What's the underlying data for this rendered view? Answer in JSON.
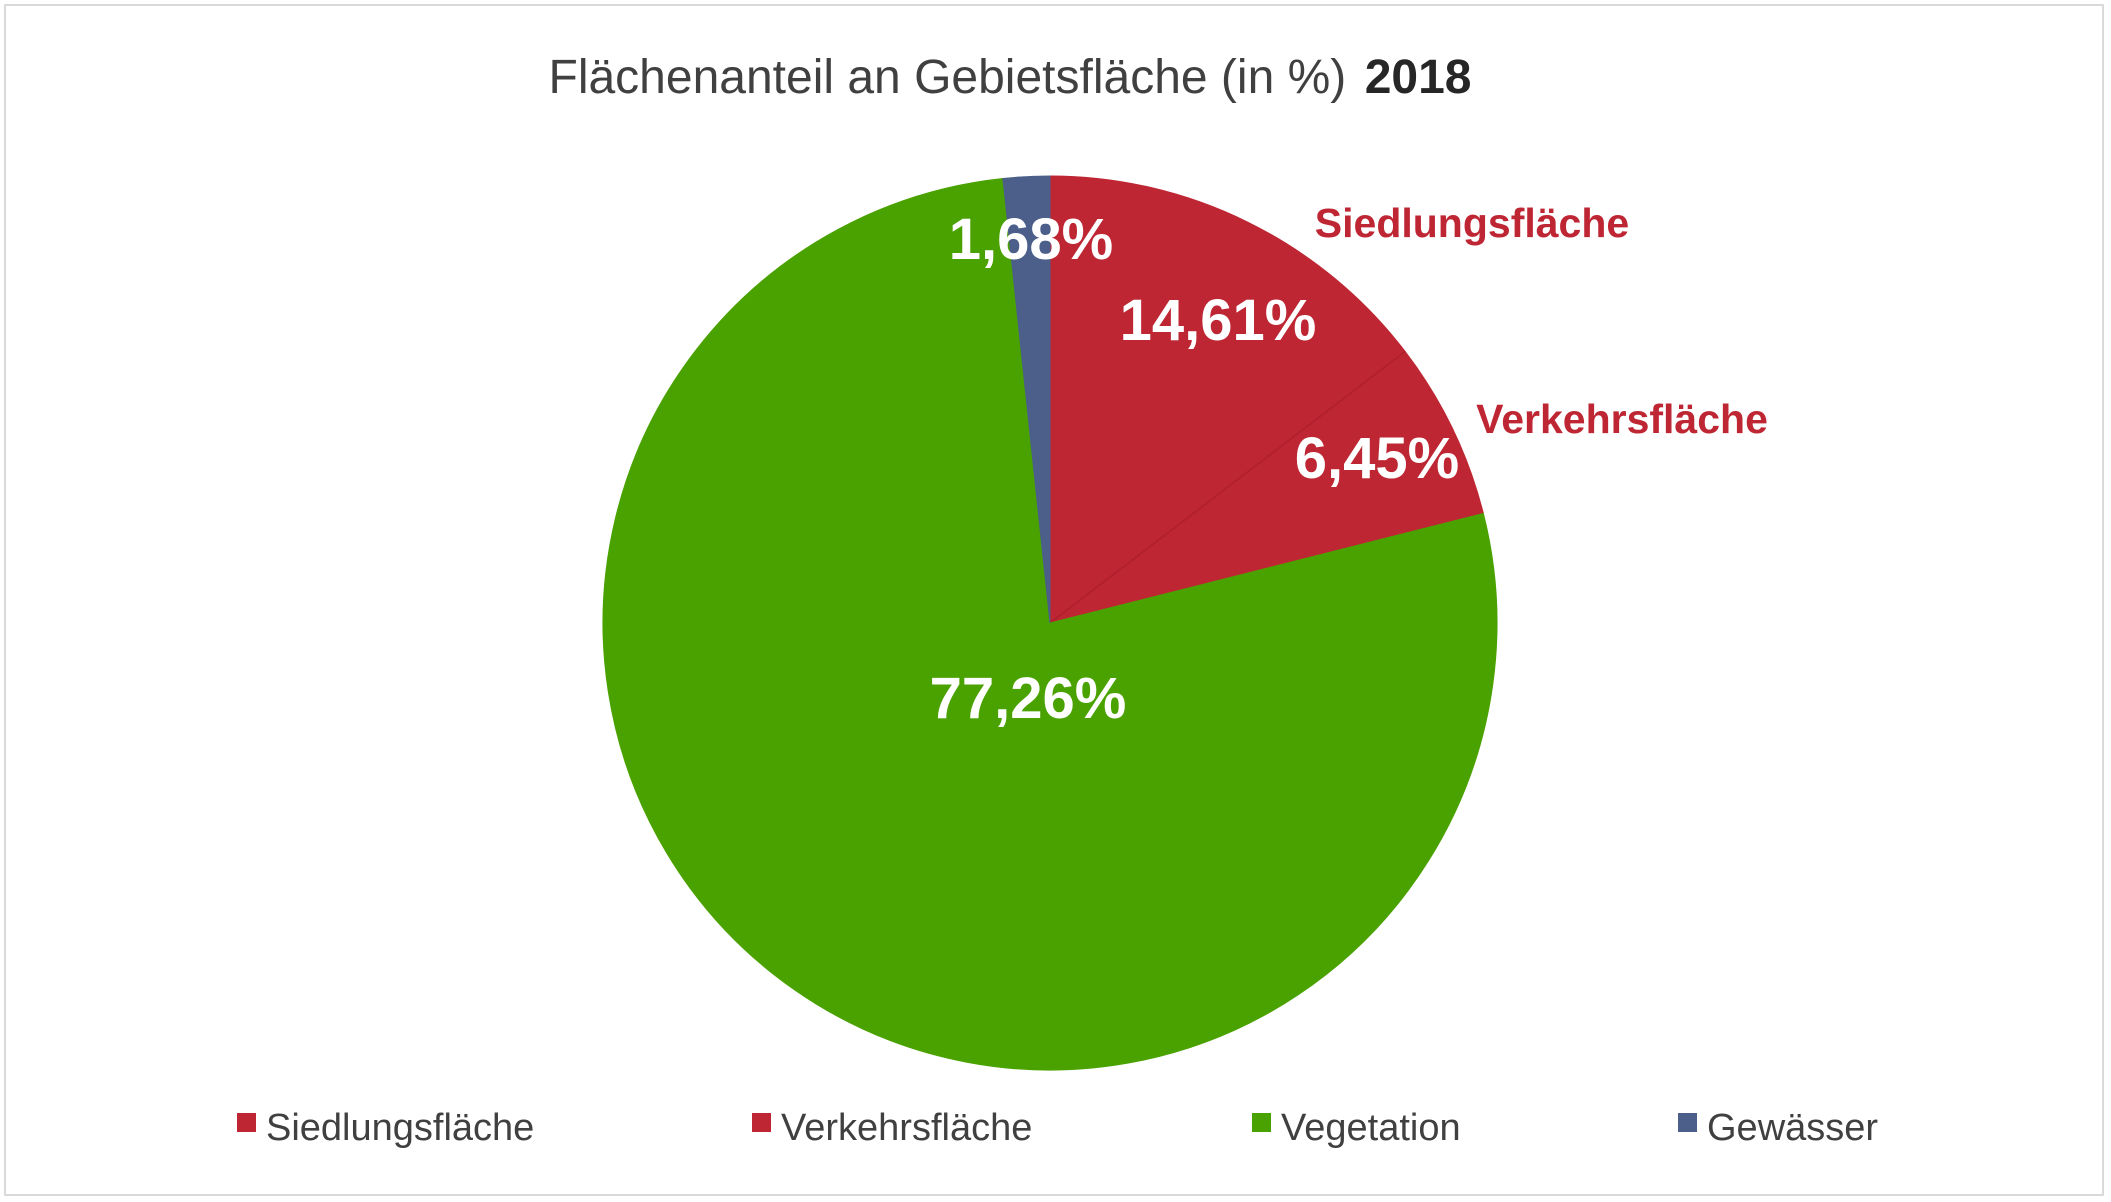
{
  "chart_data": {
    "type": "pie",
    "title": "Flächenanteil an Gebietsfläche (in %)",
    "title_year": "2018",
    "slices": [
      {
        "name": "Siedlungsfläche",
        "value": 14.61,
        "label": "14,61%",
        "color": "#be2633",
        "category_label": "Siedlungsfläche"
      },
      {
        "name": "Verkehrsfläche",
        "value": 6.45,
        "label": "6,45%",
        "color": "#be2633",
        "category_label": "Verkehrsfläche"
      },
      {
        "name": "Vegetation",
        "value": 77.26,
        "label": "77,26%",
        "color": "#4aa200",
        "category_label": ""
      },
      {
        "name": "Gewässer",
        "value": 1.68,
        "label": "1,68%",
        "color": "#4b5f8a",
        "category_label": ""
      }
    ],
    "start_angle_deg": 0,
    "direction": "clockwise",
    "legend": {
      "position": "bottom",
      "entries": [
        {
          "label": "Siedlungsfläche",
          "color": "#be2633"
        },
        {
          "label": "Verkehrsfläche",
          "color": "#be2633"
        },
        {
          "label": "Vegetation",
          "color": "#4aa200"
        },
        {
          "label": "Gewässer",
          "color": "#4b5f8a"
        }
      ]
    },
    "category_label_color": "#be2633"
  }
}
